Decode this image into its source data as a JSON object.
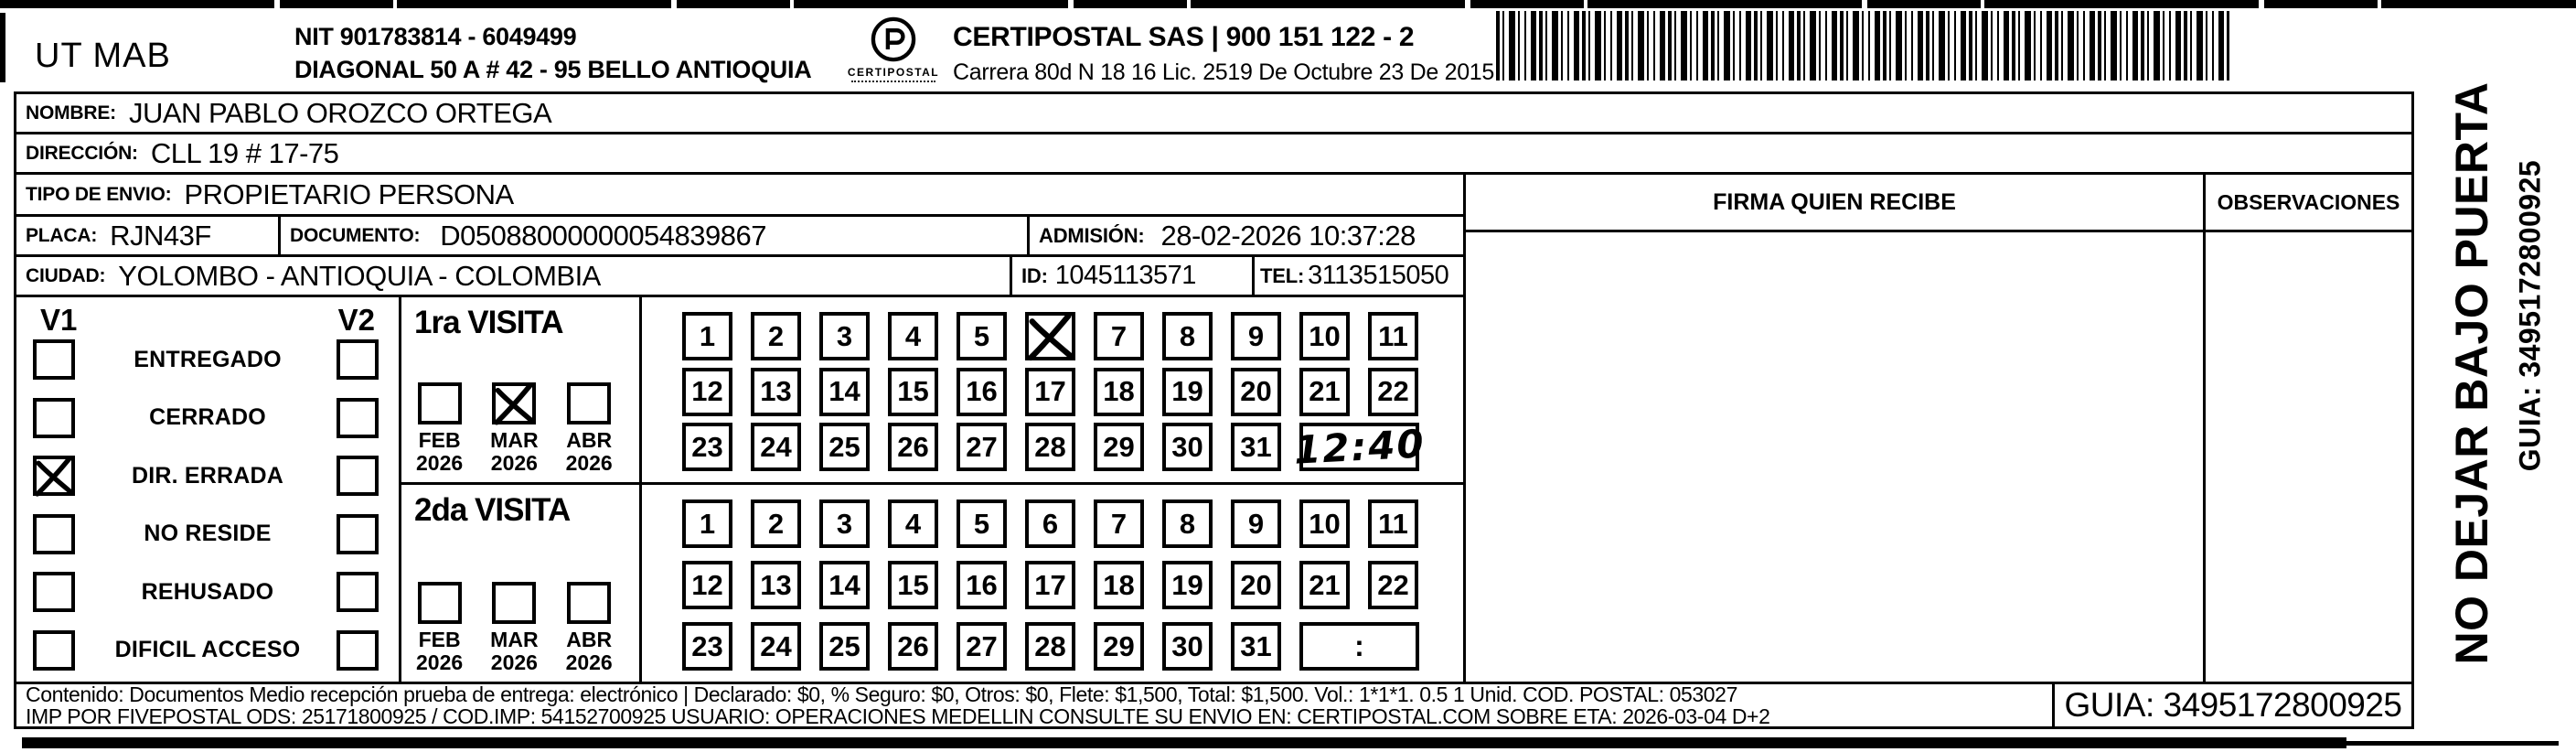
{
  "header": {
    "unit": "UT MAB",
    "nit_line": "NIT 901783814 - 6049499",
    "address_line": "DIAGONAL 50 A # 42 - 95  BELLO  ANTIOQUIA",
    "logo_caption": "CERTIPOSTAL",
    "company_line": "CERTIPOSTAL SAS | 900 151 122 - 2",
    "license_line": "Carrera 80d N 18 16  Lic. 2519 De Octubre 23 De 2015"
  },
  "recipient": {
    "nombre_label": "NOMBRE:",
    "nombre": "JUAN PABLO OROZCO ORTEGA",
    "direccion_label": "DIRECCIÓN:",
    "direccion": "CLL 19 # 17-75",
    "tipo_envio_label": "TIPO DE ENVIO:",
    "tipo_envio": "PROPIETARIO PERSONA",
    "placa_label": "PLACA:",
    "placa": "RJN43F",
    "documento_label": "DOCUMENTO:",
    "documento": "D05088000000054839867",
    "admision_label": "ADMISIÓN:",
    "admision": "28-02-2026 10:37:28",
    "ciudad_label": "CIUDAD:",
    "ciudad": "YOLOMBO - ANTIOQUIA - COLOMBIA",
    "id_label": "ID:",
    "id": "1045113571",
    "tel_label": "TEL:",
    "tel": "3113515050"
  },
  "signature": {
    "firma_header": "FIRMA QUIEN RECIBE",
    "observaciones_header": "OBSERVACIONES"
  },
  "status_panel": {
    "v1_header": "V1",
    "v2_header": "V2",
    "rows": [
      {
        "label": "ENTREGADO",
        "v1": false,
        "v2": false
      },
      {
        "label": "CERRADO",
        "v1": false,
        "v2": false
      },
      {
        "label": "DIR. ERRADA",
        "v1": true,
        "v2": false
      },
      {
        "label": "NO RESIDE",
        "v1": false,
        "v2": false
      },
      {
        "label": "REHUSADO",
        "v1": false,
        "v2": false
      },
      {
        "label": "DIFICIL ACCESO",
        "v1": false,
        "v2": false
      }
    ]
  },
  "visits": [
    {
      "title": "1ra VISITA",
      "months": [
        {
          "label": "FEB",
          "year": "2026",
          "checked": false
        },
        {
          "label": "MAR",
          "year": "2026",
          "checked": true
        },
        {
          "label": "ABR",
          "year": "2026",
          "checked": false
        }
      ],
      "days": [
        1,
        2,
        3,
        4,
        5,
        6,
        7,
        8,
        9,
        10,
        11,
        12,
        13,
        14,
        15,
        16,
        17,
        18,
        19,
        20,
        21,
        22,
        23,
        24,
        25,
        26,
        27,
        28,
        29,
        30,
        31
      ],
      "crossed_day": 6,
      "time": "12:40",
      "time_style": "handwritten"
    },
    {
      "title": "2da VISITA",
      "months": [
        {
          "label": "FEB",
          "year": "2026",
          "checked": false
        },
        {
          "label": "MAR",
          "year": "2026",
          "checked": false
        },
        {
          "label": "ABR",
          "year": "2026",
          "checked": false
        }
      ],
      "days": [
        1,
        2,
        3,
        4,
        5,
        6,
        7,
        8,
        9,
        10,
        11,
        12,
        13,
        14,
        15,
        16,
        17,
        18,
        19,
        20,
        21,
        22,
        23,
        24,
        25,
        26,
        27,
        28,
        29,
        30,
        31
      ],
      "crossed_day": null,
      "time": ":",
      "time_style": "printed"
    }
  ],
  "footer": {
    "line1": "Contenido: Documentos Medio recepción prueba de entrega: electrónico | Declarado: $0, % Seguro: $0, Otros: $0, Flete: $1,500, Total: $1,500. Vol.: 1*1*1. 0.5  1 Unid. COD. POSTAL: 053027",
    "line2": "IMP POR FIVEPOSTAL ODS: 25171800925 / COD.IMP: 54152700925 USUARIO: OPERACIONES MEDELLIN CONSULTE SU ENVIO EN: CERTIPOSTAL.COM SOBRE ETA: 2026-03-04 D+2",
    "guia": "GUIA: 3495172800925"
  },
  "side_note": {
    "big": "NO DEJAR BAJO PUERTA",
    "guia": "GUIA: 3495172800925"
  }
}
